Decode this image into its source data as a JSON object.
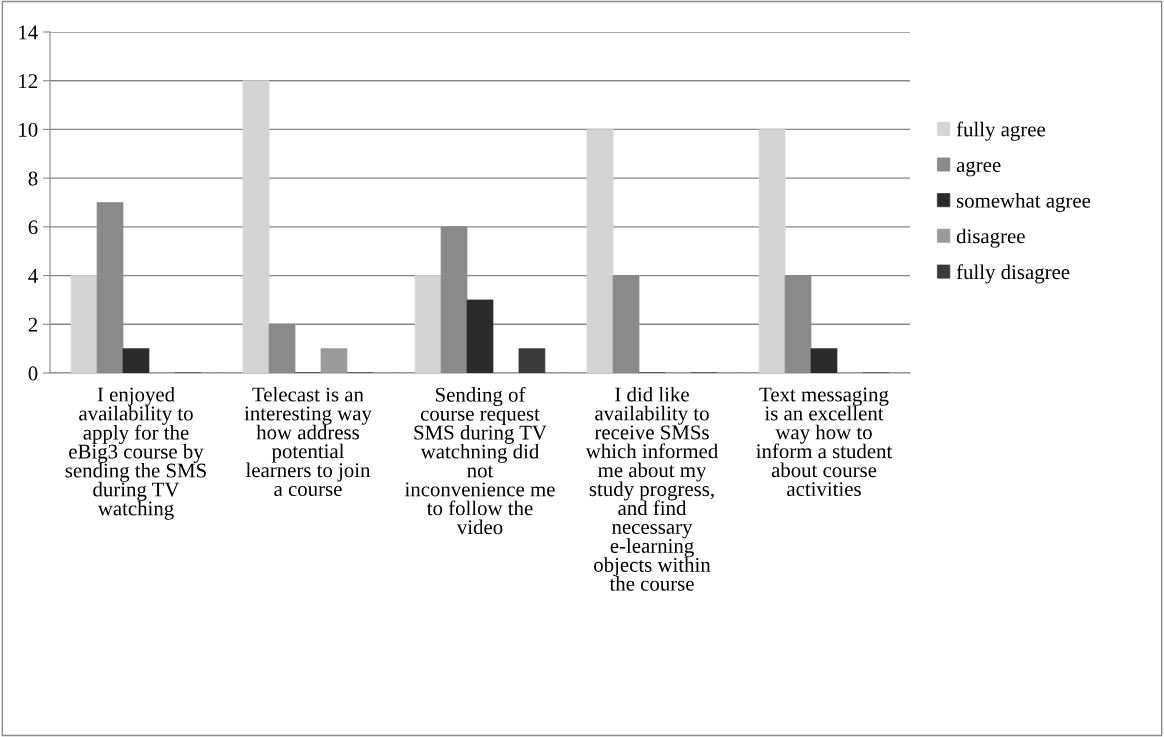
{
  "chart_data": {
    "type": "bar",
    "categories": [
      "I enjoyed availability to apply for the eBig3 course by sending the SMS during TV watching",
      "Telecast is an interesting way how address potential learners to join a course",
      "Sending of course request SMS during TV watchning did not inconvenience me to follow the video",
      "I did like availability to receive SMSs which informed me about my study progress, and find necessary e-learning objects within the course",
      "Text messaging is an excellent way how to inform a student about course activities"
    ],
    "series": [
      {
        "name": "fully agree",
        "color": "#d4d4d4",
        "values": [
          4,
          12,
          4,
          10,
          10
        ]
      },
      {
        "name": "agree",
        "color": "#8a8a8a",
        "values": [
          7,
          2,
          6,
          4,
          4
        ]
      },
      {
        "name": "somewhat agree",
        "color": "#2b2b2b",
        "values": [
          1,
          0,
          3,
          0,
          1
        ]
      },
      {
        "name": "disagree",
        "color": "#9a9a9a",
        "values": [
          0,
          1,
          0,
          0,
          0
        ]
      },
      {
        "name": "fully disagree",
        "color": "#3a3a3a",
        "values": [
          0,
          0,
          1,
          0,
          0
        ]
      }
    ],
    "ylim": [
      0,
      14
    ],
    "yticks": [
      0,
      2,
      4,
      6,
      8,
      10,
      12,
      14
    ],
    "grid": "y",
    "legend": "right"
  }
}
